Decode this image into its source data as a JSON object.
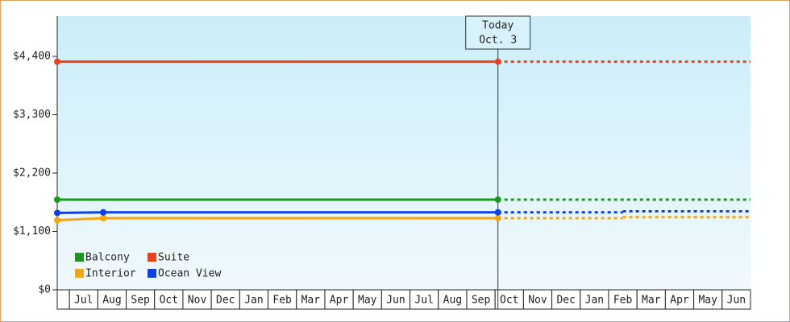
{
  "chart_data": {
    "type": "line",
    "categories": [
      null,
      "Jul",
      "Aug",
      "Sep",
      "Oct",
      "Nov",
      "Dec",
      "Jan",
      "Feb",
      "Mar",
      "Apr",
      "May",
      "Jun",
      "Jul",
      "Aug",
      "Sep",
      "Oct",
      "Nov",
      "Dec",
      "Jan",
      "Feb",
      "Mar",
      "Apr",
      "May",
      "Jun"
    ],
    "xlim": [
      -0.43,
      24
    ],
    "ylim": [
      0,
      5160
    ],
    "yticks": [
      {
        "value": 0,
        "label": "$0"
      },
      {
        "value": 1100,
        "label": "$1,100"
      },
      {
        "value": 2200,
        "label": "$2,200"
      },
      {
        "value": 3300,
        "label": "$3,300"
      },
      {
        "value": 4400,
        "label": "$4,400"
      }
    ],
    "today": {
      "x": 15.1,
      "label": "Today",
      "date": "Oct. 3"
    },
    "legend": "lower left",
    "series": [
      {
        "name": "Balcony",
        "color": "#1a9a1a",
        "x": [
          -0.43,
          15.1,
          24
        ],
        "values": [
          1700,
          1700,
          1700
        ]
      },
      {
        "name": "Suite",
        "color": "#f0401a",
        "x": [
          -0.43,
          15.1,
          24
        ],
        "values": [
          4300,
          4300,
          4300
        ]
      },
      {
        "name": "Interior",
        "color": "#f5a50f",
        "x": [
          -0.43,
          1.19,
          15.1,
          19.5,
          19.5,
          24
        ],
        "values": [
          1310,
          1350,
          1350,
          1350,
          1370,
          1370
        ]
      },
      {
        "name": "Ocean View",
        "color": "#0a40f0",
        "x": [
          -0.43,
          1.19,
          15.1,
          19.5,
          19.5,
          24
        ],
        "values": [
          1450,
          1460,
          1460,
          1460,
          1480,
          1480
        ]
      }
    ]
  }
}
